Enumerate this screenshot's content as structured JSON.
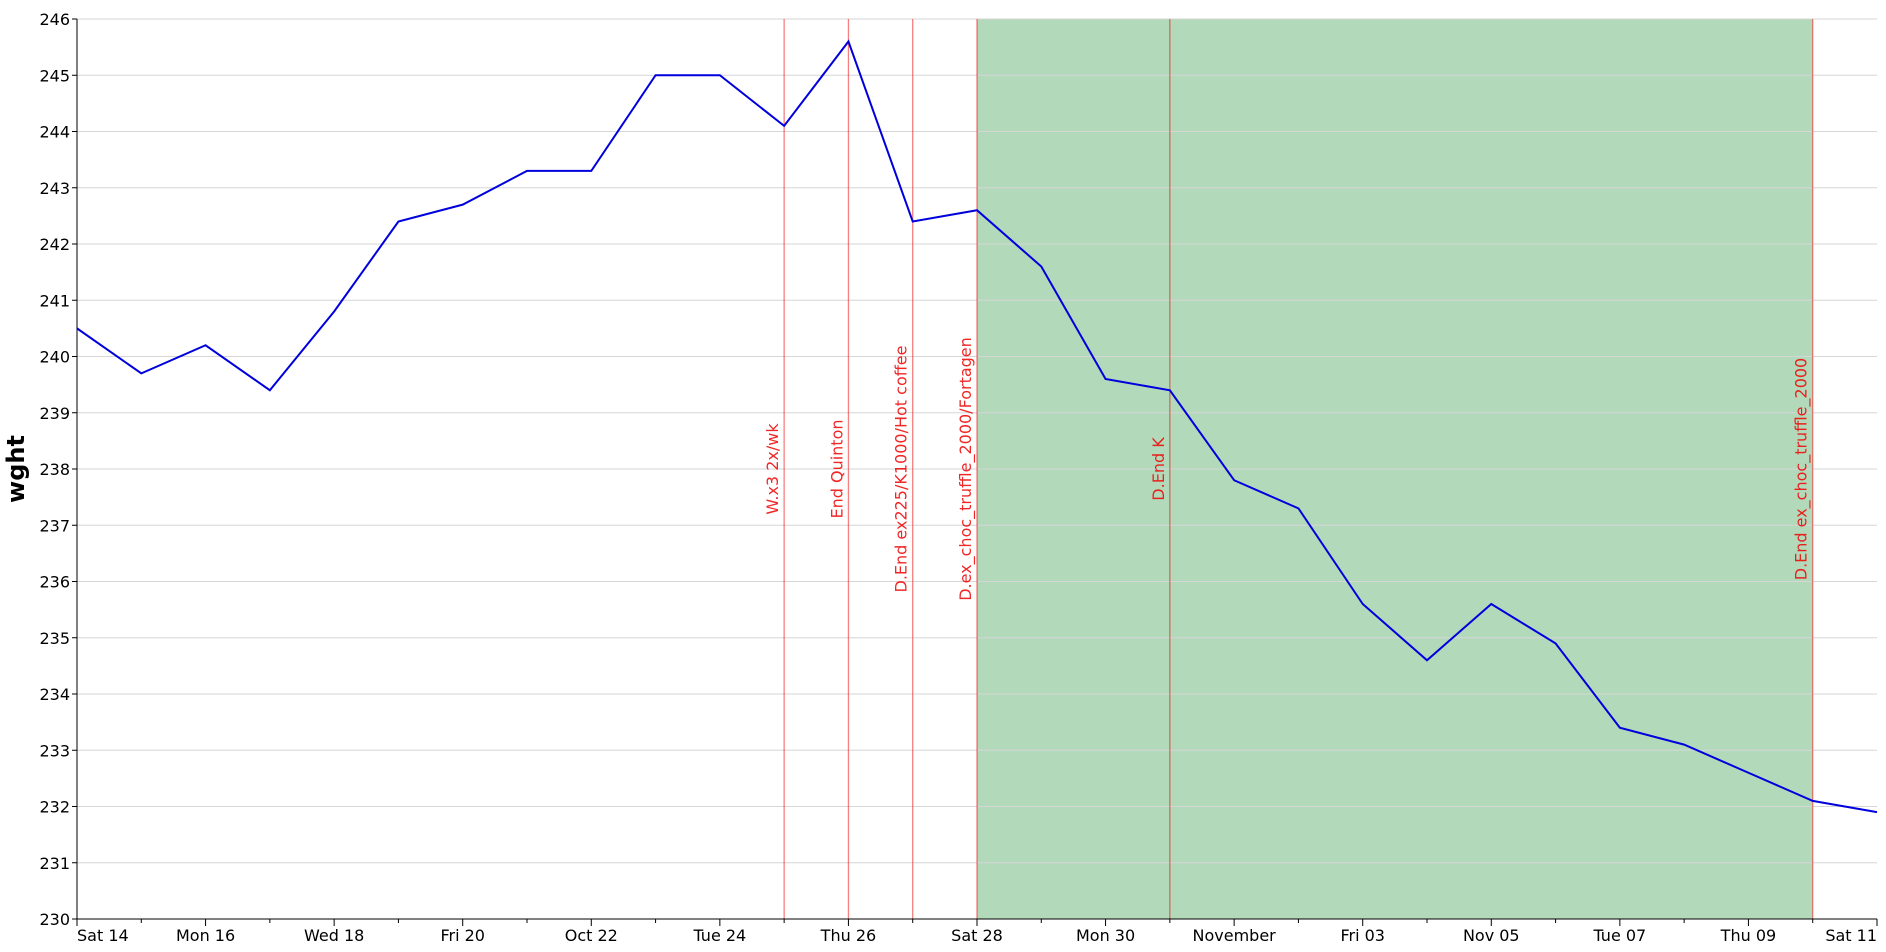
{
  "chart_data": {
    "type": "line",
    "ylabel": "wght",
    "categories": [
      "Sat 14",
      null,
      "Mon 16",
      null,
      "Wed 18",
      null,
      "Fri 20",
      null,
      "Oct 22",
      null,
      "Tue 24",
      null,
      "Thu 26",
      null,
      "Sat 28",
      null,
      "Mon 30",
      null,
      "November",
      null,
      "Fri 03",
      null,
      "Nov 05",
      null,
      "Tue 07",
      null,
      "Thu 09",
      null,
      "Sat 11"
    ],
    "values": [
      240.5,
      239.7,
      240.2,
      239.4,
      240.8,
      242.4,
      242.7,
      243.3,
      243.3,
      245.0,
      245.0,
      244.1,
      245.6,
      242.4,
      242.6,
      241.6,
      239.6,
      239.4,
      237.8,
      237.3,
      235.6,
      234.6,
      235.6,
      234.9,
      233.4,
      233.1,
      232.6,
      232.1,
      231.9
    ],
    "color": "#0000dd",
    "ylim": [
      230,
      246
    ],
    "yticks": [
      230,
      231,
      232,
      233,
      234,
      235,
      236,
      237,
      238,
      239,
      240,
      241,
      242,
      243,
      244,
      245,
      246
    ],
    "grid": true,
    "span": [
      14,
      27
    ],
    "span_color": "#b3d9bb",
    "annotation_color": "#ee0000",
    "annotations": [
      {
        "at": 11,
        "text": "W.x3 2x/wk"
      },
      {
        "at": 12,
        "text": "End Quinton"
      },
      {
        "at": 13,
        "text": "D.End ex225/K1000/Hot coffee"
      },
      {
        "at": 14,
        "text": "D.ex_choc_truffle_2000/Fortagen"
      },
      {
        "at": 17,
        "text": "D.End K"
      },
      {
        "at": 27,
        "text": "D.End ex_choc_truffle_2000"
      }
    ]
  }
}
